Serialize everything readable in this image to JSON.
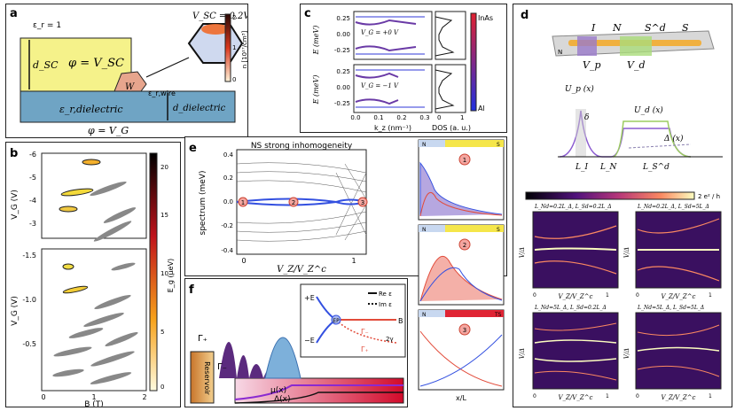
{
  "panels": {
    "a": {
      "label": "a",
      "vsc_title": "V_SC = 0.2V",
      "eps_r": "ε_r = 1",
      "phi_sc": "φ = V_SC",
      "d_sc": "d_SC",
      "w": "W",
      "eps_wire": "ε_r,wire",
      "eps_diel": "ε_r,dielectric",
      "d_diel": "d_dielectric",
      "phi_g": "φ = V_G",
      "cbar_label": "n [10¹⁷/cm³]",
      "cbar_ticks": [
        "2",
        "1",
        "0"
      ]
    },
    "b": {
      "label": "b",
      "ylabel": "V_G (V)",
      "xlabel": "B (T)",
      "yticks_top": [
        "-6",
        "-5",
        "-4",
        "-3"
      ],
      "yticks_bot": [
        "-1.5",
        "-1.0",
        "-0.5"
      ],
      "xticks": [
        "0",
        "1",
        "2"
      ],
      "cbar_label": "E_g (μeV)",
      "cbar_ticks": [
        "20",
        "15",
        "10",
        "5",
        "0"
      ]
    },
    "c": {
      "label": "c",
      "vg1": "V_G = +0 V",
      "vg2": "V_G = −1 V",
      "ylabel": "E (meV)",
      "xlabel": "k_z (nm⁻¹)",
      "dos_label": "DOS (a. u.)",
      "yticks": [
        "0.25",
        "0.00",
        "-0.25"
      ],
      "xticks": [
        "0.0",
        "0.1",
        "0.2",
        "0.3"
      ],
      "dos_ticks": [
        "0",
        "1"
      ],
      "inas": "InAs",
      "al": "Al"
    },
    "d": {
      "label": "d",
      "I": "I",
      "N": "N",
      "Sd": "S^d",
      "S": "S",
      "Vp": "V_p",
      "Vd": "V_d",
      "Np": "N",
      "Up": "U_p (x)",
      "Ud": "U_d (x)",
      "delta": "δ",
      "Dx": "Δ (x)",
      "LI": "L_I",
      "LN": "L_N",
      "LSd": "L_S^d",
      "cbar_label": "2 e² / h",
      "sub": [
        {
          "title": "L_Nd=0.2L_Δ, L_Sd=0.2L_Δ"
        },
        {
          "title": "L_Nd=0.2L_Δ, L_Sd=5L_Δ"
        },
        {
          "title": "L_Nd=5L_Δ, L_Sd=0.2L_Δ"
        },
        {
          "title": "L_Nd=5L_Δ, L_Sd=5L_Δ"
        }
      ],
      "ylabel": "V/Δ",
      "xlabel": "V_Z/V_Z^c",
      "xticks": [
        "0",
        "1"
      ]
    },
    "e": {
      "label": "e",
      "title": "NS strong inhomogeneity",
      "ylabel": "spectrum (meV)",
      "xlabel": "V_Z/V_Z^c",
      "yticks": [
        "0.4",
        "0.3",
        "0.2",
        "0.1",
        "0.0",
        "-0.1",
        "-0.2",
        "-0.3",
        "-0.4"
      ],
      "xticks": [
        "0",
        "1"
      ],
      "markers": [
        "1",
        "2",
        "3"
      ],
      "side": [
        {
          "left": "N",
          "right": "S",
          "num": "1"
        },
        {
          "left": "N",
          "right": "S",
          "num": "2"
        },
        {
          "left": "N",
          "right": "TS",
          "num": "3"
        }
      ],
      "xl": "x/L"
    },
    "f": {
      "label": "f",
      "gplus": "Γ₊",
      "gminus": "Γ₋",
      "reservoir": "Reservoir",
      "mu": "μ(x)",
      "Delta": "Δ(x)",
      "pe": "+E",
      "me": "−E",
      "ep": "EP",
      "b": "B",
      "rel": "Re ε",
      "iml": "Im ε",
      "gm2": "Γ₋",
      "gp2": "Γ₊",
      "twog": "2γ"
    }
  }
}
